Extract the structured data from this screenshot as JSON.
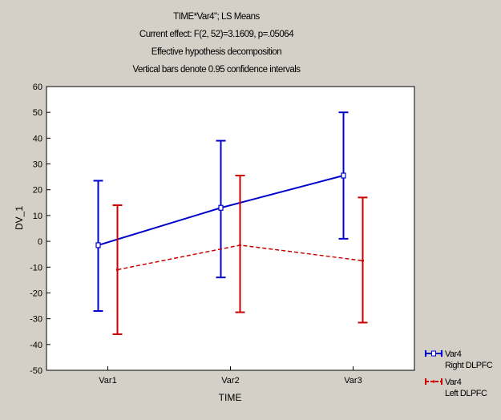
{
  "chart_data": {
    "type": "line",
    "title": "TIME*Var4\"; LS Means",
    "subtitle_lines": [
      "Current effect: F(2, 52)=3.1609, p=.05064",
      "Effective hypothesis decomposition",
      "Vertical bars denote 0.95 confidence intervals"
    ],
    "xlabel": "TIME",
    "ylabel": "DV_1",
    "categories": [
      "Var1",
      "Var2",
      "Var3"
    ],
    "ylim": [
      -50,
      60
    ],
    "yticks": [
      -50,
      -40,
      -30,
      -20,
      -10,
      0,
      10,
      20,
      30,
      40,
      50,
      60
    ],
    "series": [
      {
        "legend_lines": [
          "Var4",
          "Right DLPFC"
        ],
        "color": "#0000cc",
        "line_style": "solid",
        "values": [
          -1.5,
          13,
          25.5
        ],
        "ci_lower": [
          -27,
          -14,
          1
        ],
        "ci_upper": [
          23.5,
          39,
          50
        ]
      },
      {
        "legend_lines": [
          "Var4",
          "Left DLPFC"
        ],
        "color": "#cc0000",
        "line_style": "dashed",
        "values": [
          -11,
          -1.5,
          -7.5
        ],
        "ci_lower": [
          -36,
          -27.5,
          -31.5
        ],
        "ci_upper": [
          14,
          25.5,
          17
        ]
      }
    ],
    "grid": false,
    "legend_position": "bottom-right"
  }
}
